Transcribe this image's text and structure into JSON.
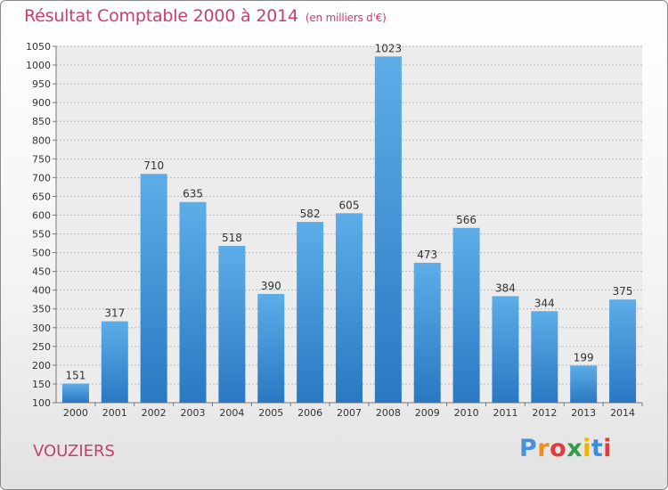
{
  "chart_data": {
    "type": "bar",
    "title": "Résultat Comptable 2000 à 2014",
    "subtitle": "(en milliers d'€)",
    "xlabel": "",
    "ylabel": "",
    "ylim": [
      100,
      1050
    ],
    "yticks": [
      100,
      150,
      200,
      250,
      300,
      350,
      400,
      450,
      500,
      550,
      600,
      650,
      700,
      750,
      800,
      850,
      900,
      950,
      1000,
      1050
    ],
    "categories": [
      "2000",
      "2001",
      "2002",
      "2003",
      "2004",
      "2005",
      "2006",
      "2007",
      "2008",
      "2009",
      "2010",
      "2011",
      "2012",
      "2013",
      "2014"
    ],
    "values": [
      151,
      317,
      710,
      635,
      518,
      390,
      582,
      605,
      1023,
      473,
      566,
      384,
      344,
      199,
      375
    ],
    "bar_color": "#3a8fd6"
  },
  "city": "VOUZIERS",
  "brand": {
    "letters": [
      "P",
      "r",
      "o",
      "x",
      "i",
      "t",
      "i"
    ],
    "colors": [
      "#4a90d9",
      "#f08c1a",
      "#e23b3b",
      "#2e9e4a",
      "#f0b400",
      "#3a8fd6",
      "#e23b3b"
    ]
  }
}
